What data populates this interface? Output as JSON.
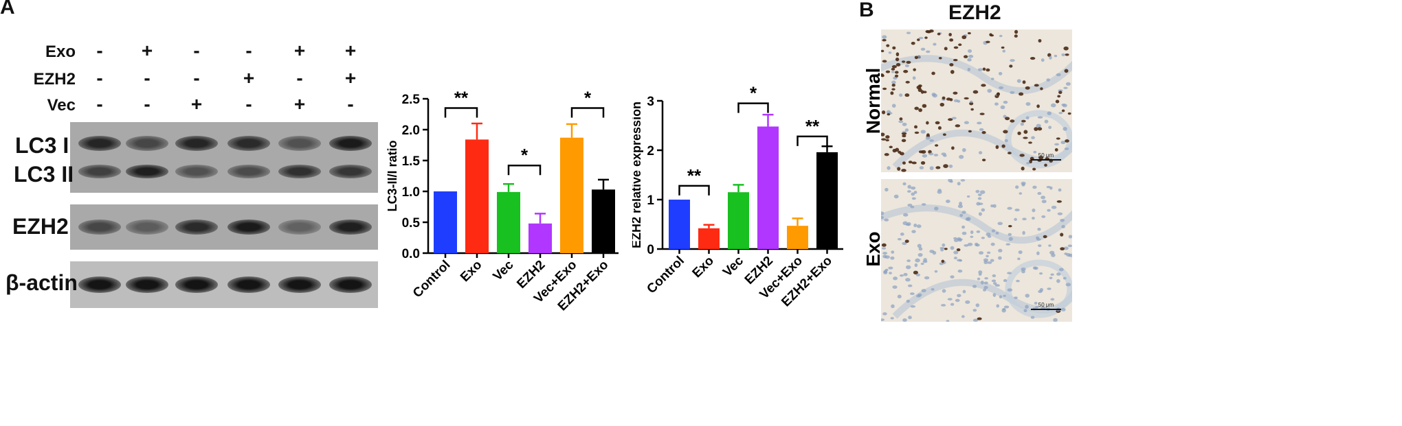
{
  "panel_a_letter": "A",
  "panel_b_letter": "B",
  "treatments": {
    "rows": [
      {
        "label": "Exo",
        "signs": [
          "-",
          "+",
          "-",
          "-",
          "+",
          "+"
        ]
      },
      {
        "label": "EZH2",
        "signs": [
          "-",
          "-",
          "-",
          "+",
          "-",
          "+"
        ]
      },
      {
        "label": "Vec",
        "signs": [
          "-",
          "-",
          "+",
          "-",
          "+",
          "-"
        ]
      }
    ]
  },
  "blot_labels": {
    "lc3_1": "LC3 I",
    "lc3_2": "LC3 II",
    "ezh2": "EZH2",
    "actin": "β-actin"
  },
  "band_intensity": {
    "lc3_1": [
      0.85,
      0.55,
      0.85,
      0.8,
      0.45,
      0.95
    ],
    "lc3_2": [
      0.6,
      0.9,
      0.45,
      0.5,
      0.75,
      0.7
    ],
    "ezh2": [
      0.55,
      0.35,
      0.8,
      0.95,
      0.3,
      0.9
    ],
    "actin": [
      1,
      1,
      1,
      1,
      1,
      1
    ]
  },
  "ihc": {
    "title": "EZH2",
    "rows": [
      {
        "label": "Normal",
        "scale_label": "50 μm"
      },
      {
        "label": "Exo",
        "scale_label": "50 μm"
      }
    ]
  },
  "colors": {
    "Control": "#1f3dff",
    "Exo": "#ff2a12",
    "Vec": "#18c020",
    "EZH2": "#b136ff",
    "Vec+Exo": "#ff9a00",
    "EZH2+Exo": "#000000"
  },
  "chart_data": [
    {
      "type": "bar",
      "title": "",
      "ylabel": "LC3-II/I ratio",
      "xlabel": "",
      "categories": [
        "Control",
        "Exo",
        "Vec",
        "EZH2",
        "Vec+Exo",
        "EZH2+Exo"
      ],
      "values": [
        1.0,
        1.84,
        0.99,
        0.48,
        1.87,
        1.03
      ],
      "errors": [
        0,
        0.26,
        0.13,
        0.16,
        0.22,
        0.16
      ],
      "ylim": [
        0,
        2.5
      ],
      "ticks": [
        "0.0",
        "0.5",
        "1.0",
        "1.5",
        "2.0",
        "2.5"
      ],
      "brackets": [
        {
          "from": 0,
          "to": 1,
          "label": "**",
          "y": 2.35
        },
        {
          "from": 2,
          "to": 3,
          "label": "*",
          "y": 1.42
        },
        {
          "from": 4,
          "to": 5,
          "label": "*",
          "y": 2.35
        }
      ]
    },
    {
      "type": "bar",
      "title": "",
      "ylabel": "EZH2 relative expression",
      "xlabel": "",
      "categories": [
        "Control",
        "Exo",
        "Vec",
        "EZH2",
        "Vec+Exo",
        "EZH2+Exo"
      ],
      "values": [
        1.0,
        0.42,
        1.15,
        2.48,
        0.47,
        1.96
      ],
      "errors": [
        0,
        0.07,
        0.15,
        0.24,
        0.15,
        0.12
      ],
      "ylim": [
        0,
        3
      ],
      "ticks": [
        "0",
        "1",
        "2",
        "3"
      ],
      "brackets": [
        {
          "from": 0,
          "to": 1,
          "label": "**",
          "y": 1.28
        },
        {
          "from": 2,
          "to": 3,
          "label": "*",
          "y": 2.95
        },
        {
          "from": 4,
          "to": 5,
          "label": "**",
          "y": 2.28
        }
      ]
    }
  ]
}
